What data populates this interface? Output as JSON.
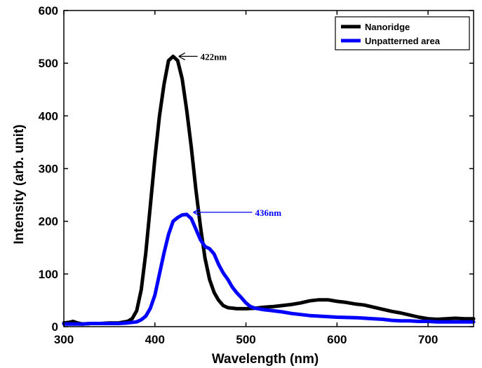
{
  "chart_data": {
    "type": "line",
    "xlabel": "Wavelength (nm)",
    "ylabel": "Intensity (arb. unit)",
    "xlim": [
      300,
      750
    ],
    "ylim": [
      0,
      600
    ],
    "xticks": [
      300,
      400,
      500,
      600,
      700
    ],
    "yticks": [
      0,
      100,
      200,
      300,
      400,
      500,
      600
    ],
    "grid": false,
    "legend_position": "top-right",
    "series": [
      {
        "name": "Nanoridge",
        "color": "#000000",
        "points": [
          [
            300,
            7
          ],
          [
            305,
            8
          ],
          [
            310,
            10
          ],
          [
            315,
            7
          ],
          [
            320,
            5
          ],
          [
            330,
            6
          ],
          [
            340,
            6
          ],
          [
            350,
            7
          ],
          [
            360,
            7
          ],
          [
            370,
            10
          ],
          [
            375,
            15
          ],
          [
            380,
            30
          ],
          [
            385,
            70
          ],
          [
            390,
            140
          ],
          [
            395,
            230
          ],
          [
            400,
            320
          ],
          [
            405,
            400
          ],
          [
            410,
            460
          ],
          [
            415,
            505
          ],
          [
            420,
            513
          ],
          [
            425,
            505
          ],
          [
            430,
            470
          ],
          [
            435,
            410
          ],
          [
            440,
            340
          ],
          [
            445,
            260
          ],
          [
            450,
            190
          ],
          [
            455,
            130
          ],
          [
            460,
            90
          ],
          [
            465,
            65
          ],
          [
            470,
            50
          ],
          [
            475,
            40
          ],
          [
            480,
            36
          ],
          [
            490,
            34
          ],
          [
            500,
            34
          ],
          [
            510,
            35
          ],
          [
            520,
            37
          ],
          [
            530,
            38
          ],
          [
            540,
            40
          ],
          [
            550,
            42
          ],
          [
            560,
            45
          ],
          [
            570,
            49
          ],
          [
            580,
            51
          ],
          [
            590,
            51
          ],
          [
            600,
            48
          ],
          [
            610,
            46
          ],
          [
            620,
            43
          ],
          [
            630,
            41
          ],
          [
            640,
            37
          ],
          [
            650,
            33
          ],
          [
            660,
            29
          ],
          [
            670,
            26
          ],
          [
            680,
            22
          ],
          [
            690,
            18
          ],
          [
            700,
            15
          ],
          [
            710,
            14
          ],
          [
            720,
            15
          ],
          [
            730,
            16
          ],
          [
            740,
            15
          ],
          [
            750,
            15
          ]
        ]
      },
      {
        "name": "Unpatterned area",
        "color": "#0000ff",
        "points": [
          [
            300,
            5
          ],
          [
            310,
            5
          ],
          [
            320,
            5
          ],
          [
            330,
            6
          ],
          [
            340,
            6
          ],
          [
            350,
            6
          ],
          [
            360,
            6
          ],
          [
            370,
            7
          ],
          [
            380,
            9
          ],
          [
            385,
            13
          ],
          [
            390,
            20
          ],
          [
            395,
            35
          ],
          [
            400,
            60
          ],
          [
            405,
            100
          ],
          [
            410,
            140
          ],
          [
            415,
            175
          ],
          [
            420,
            200
          ],
          [
            425,
            207
          ],
          [
            430,
            212
          ],
          [
            435,
            213
          ],
          [
            440,
            205
          ],
          [
            445,
            185
          ],
          [
            450,
            165
          ],
          [
            455,
            152
          ],
          [
            460,
            148
          ],
          [
            465,
            138
          ],
          [
            470,
            118
          ],
          [
            475,
            102
          ],
          [
            480,
            90
          ],
          [
            485,
            75
          ],
          [
            490,
            64
          ],
          [
            495,
            55
          ],
          [
            500,
            45
          ],
          [
            505,
            38
          ],
          [
            510,
            35
          ],
          [
            520,
            32
          ],
          [
            530,
            30
          ],
          [
            540,
            28
          ],
          [
            550,
            25
          ],
          [
            560,
            23
          ],
          [
            570,
            21
          ],
          [
            580,
            20
          ],
          [
            590,
            19
          ],
          [
            600,
            18
          ],
          [
            620,
            17
          ],
          [
            640,
            15
          ],
          [
            650,
            14
          ],
          [
            660,
            12
          ],
          [
            670,
            11
          ],
          [
            680,
            11
          ],
          [
            690,
            10
          ],
          [
            700,
            10
          ],
          [
            710,
            9
          ],
          [
            720,
            9
          ],
          [
            730,
            9
          ],
          [
            740,
            9
          ],
          [
            750,
            9
          ]
        ]
      }
    ],
    "annotations": [
      {
        "text": "422nm",
        "color": "#000000",
        "arrow_to": [
          420,
          513
        ],
        "text_at": [
          450,
          513
        ]
      },
      {
        "text": "436nm",
        "color": "#0000ff",
        "arrow_to": [
          436,
          217
        ],
        "text_at": [
          510,
          217
        ]
      }
    ]
  }
}
